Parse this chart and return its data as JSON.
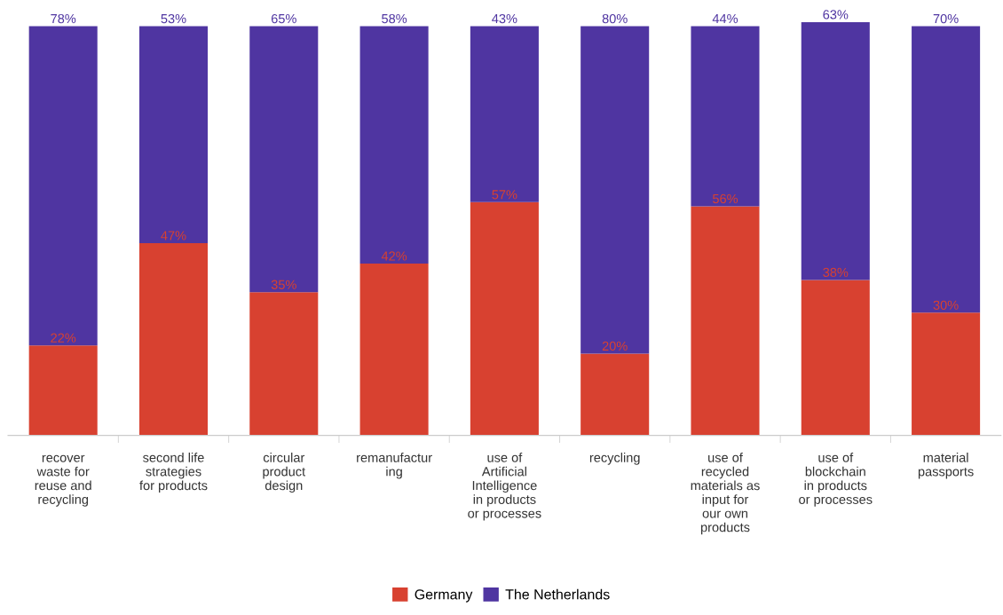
{
  "chart_data": {
    "type": "bar",
    "stacked": true,
    "legend": "bottom",
    "grid": false,
    "categories": [
      "recover\nwaste for\nreuse and\nrecycling",
      "second life\nstrategies\nfor products",
      "circular\nproduct\ndesign",
      "remanufactur\ning",
      "use of\nArtificial\nIntelligence\nin products\nor processes",
      "recycling",
      "use of\nrecycled\nmaterials as\ninput for\nour own\nproducts",
      "use of\nblockchain\nin products\nor processes",
      "material\npassports"
    ],
    "series": [
      {
        "name": "Germany",
        "color": "#d84130",
        "values": [
          22,
          47,
          35,
          42,
          57,
          20,
          56,
          38,
          30
        ],
        "value_labels": [
          "22%",
          "47%",
          "35%",
          "42%",
          "57%",
          "20%",
          "56%",
          "38%",
          "30%"
        ]
      },
      {
        "name": "The Netherlands",
        "color": "#4f35a1",
        "values": [
          78,
          53,
          65,
          58,
          43,
          80,
          44,
          63,
          70
        ],
        "value_labels": [
          "78%",
          "53%",
          "65%",
          "58%",
          "43%",
          "80%",
          "44%",
          "63%",
          "70%"
        ]
      }
    ]
  }
}
